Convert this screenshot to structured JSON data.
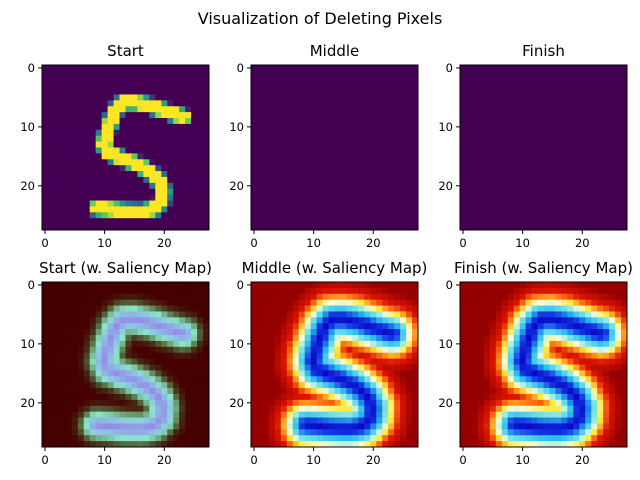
{
  "chart_data": {
    "type": "heatmap",
    "title": "Visualization of Deleting Pixels",
    "panels": [
      {
        "title": "Start",
        "render": "digit-viridis"
      },
      {
        "title": "Middle",
        "render": "blank-viridis"
      },
      {
        "title": "Finish",
        "render": "blank-viridis"
      },
      {
        "title": "Start (w. Saliency Map)",
        "render": "digit-saliency-dark"
      },
      {
        "title": "Middle (w. Saliency Map)",
        "render": "saliency-jet"
      },
      {
        "title": "Finish (w. Saliency Map)",
        "render": "saliency-jet"
      }
    ],
    "image_size": [
      28,
      28
    ],
    "xlim": [
      -0.5,
      27.5
    ],
    "ylim": [
      27.5,
      -0.5
    ],
    "xticks": [
      0,
      10,
      20
    ],
    "yticks": [
      0,
      10,
      20
    ],
    "colors": {
      "viridis_low": "#440154",
      "viridis_high": "#fde725",
      "saliency_background": "#8a0000"
    }
  }
}
